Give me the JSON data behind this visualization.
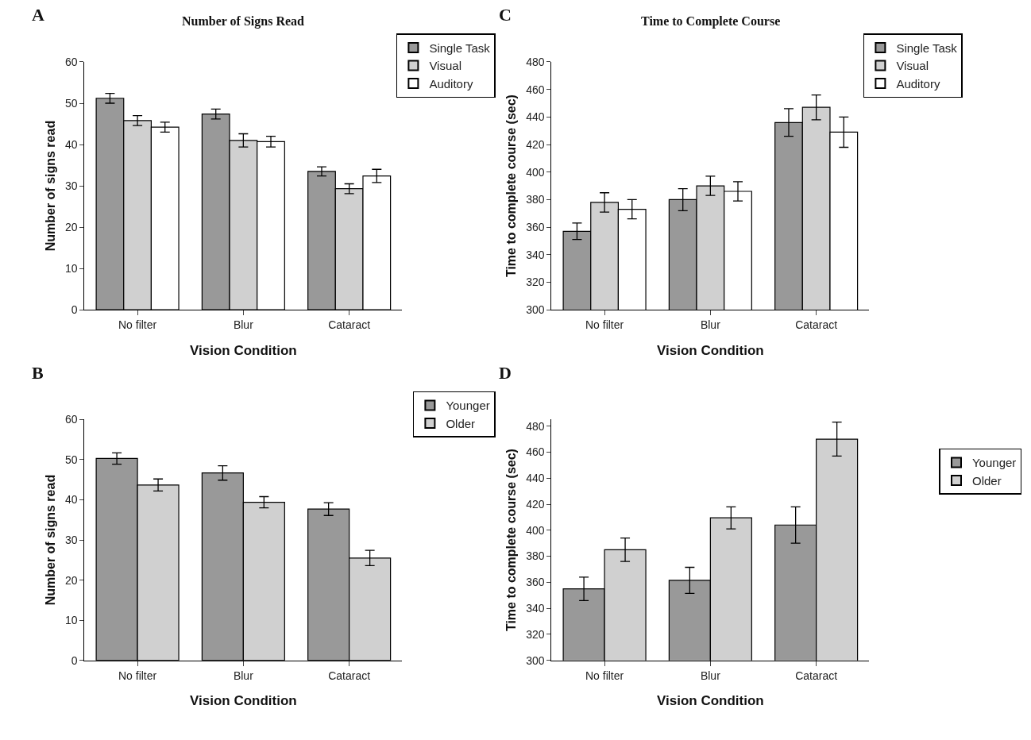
{
  "chart_data": [
    {
      "type": "bar",
      "title": "Number of Signs Read",
      "annotations": [
        "A"
      ],
      "xlabel": "Vision Condition",
      "ylabel": "Number of signs read",
      "categories": [
        "No filter",
        "Blur",
        "Cataract"
      ],
      "ylim": [
        0,
        60
      ],
      "yticks": [
        0,
        10,
        20,
        30,
        40,
        50,
        60
      ],
      "legend": "top right",
      "series": [
        {
          "name": "Single Task",
          "color": "#999999",
          "values": [
            51.2,
            47.4,
            33.5
          ],
          "errors": [
            1.2,
            1.2,
            1.1
          ]
        },
        {
          "name": "Visual",
          "color": "#d0d0d0",
          "values": [
            45.8,
            41.0,
            29.3
          ],
          "errors": [
            1.2,
            1.6,
            1.2
          ]
        },
        {
          "name": "Auditory",
          "color": "#ffffff",
          "values": [
            44.2,
            40.7,
            32.4
          ],
          "errors": [
            1.2,
            1.3,
            1.6
          ]
        }
      ]
    },
    {
      "type": "bar",
      "title": "Time to Complete Course",
      "annotations": [
        "C"
      ],
      "xlabel": "Vision Condition",
      "ylabel": "Time to complete course (sec)",
      "categories": [
        "No filter",
        "Blur",
        "Cataract"
      ],
      "ylim": [
        300,
        480
      ],
      "yticks": [
        300,
        320,
        340,
        360,
        380,
        400,
        420,
        440,
        460,
        480
      ],
      "legend": "top right",
      "series": [
        {
          "name": "Single Task",
          "color": "#999999",
          "values": [
            357,
            380,
            436
          ],
          "errors": [
            6,
            8,
            10
          ]
        },
        {
          "name": "Visual",
          "color": "#d0d0d0",
          "values": [
            378,
            390,
            447
          ],
          "errors": [
            7,
            7,
            9
          ]
        },
        {
          "name": "Auditory",
          "color": "#ffffff",
          "values": [
            373,
            386,
            429
          ],
          "errors": [
            7,
            7,
            11
          ]
        }
      ]
    },
    {
      "type": "bar",
      "annotations": [
        "B"
      ],
      "xlabel": "Vision Condition",
      "ylabel": "Number of signs read",
      "categories": [
        "No filter",
        "Blur",
        "Cataract"
      ],
      "ylim": [
        0,
        60
      ],
      "yticks": [
        0,
        10,
        20,
        30,
        40,
        50,
        60
      ],
      "legend": "top right",
      "series": [
        {
          "name": "Younger",
          "color": "#999999",
          "values": [
            50.3,
            46.7,
            37.7
          ],
          "errors": [
            1.4,
            1.8,
            1.6
          ]
        },
        {
          "name": "Older",
          "color": "#d0d0d0",
          "values": [
            43.7,
            39.4,
            25.5
          ],
          "errors": [
            1.5,
            1.4,
            1.9
          ]
        }
      ]
    },
    {
      "type": "bar",
      "annotations": [
        "D"
      ],
      "xlabel": "Vision Condition",
      "ylabel": "Time to complete course (sec)",
      "categories": [
        "No filter",
        "Blur",
        "Cataract"
      ],
      "ylim": [
        300,
        485
      ],
      "yticks": [
        300,
        320,
        340,
        360,
        380,
        400,
        420,
        440,
        460,
        480
      ],
      "legend": "right",
      "series": [
        {
          "name": "Younger",
          "color": "#999999",
          "values": [
            355,
            361.5,
            404
          ],
          "errors": [
            9,
            10,
            14
          ]
        },
        {
          "name": "Older",
          "color": "#d0d0d0",
          "values": [
            385,
            409.5,
            470
          ],
          "errors": [
            9,
            8.5,
            13
          ]
        }
      ]
    }
  ]
}
